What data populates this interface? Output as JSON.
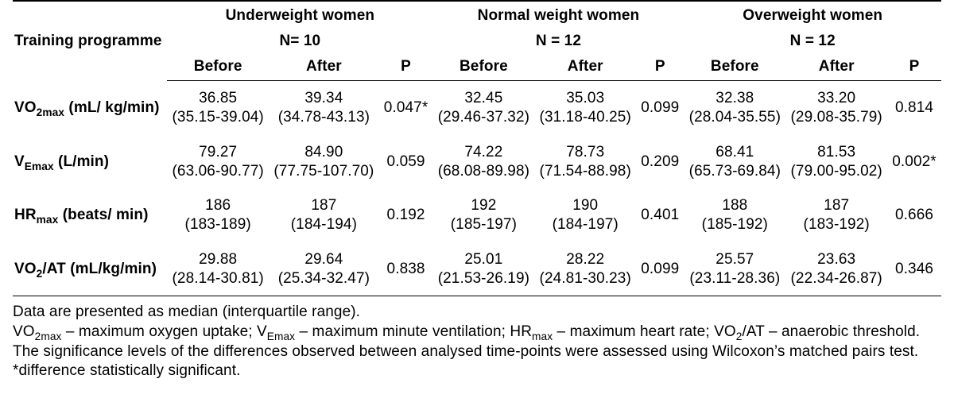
{
  "header": {
    "training_programme": "Training programme",
    "groups": [
      {
        "title": "Underweight women",
        "n": "N= 10"
      },
      {
        "title": "Normal weight women",
        "n": "N = 12"
      },
      {
        "title": "Overweight women",
        "n": "N = 12"
      }
    ],
    "before": "Before",
    "after": "After",
    "p": "P"
  },
  "rows": [
    {
      "label_html": "VO<sub>2max</sub> (mL/ kg/min)",
      "g0_before": "36.85 (35.15-39.04)",
      "g0_after": "39.34 (34.78-43.13)",
      "g0_p": "0.047*",
      "g1_before": "32.45 (29.46-37.32)",
      "g1_after": "35.03 (31.18-40.25)",
      "g1_p": "0.099",
      "g2_before": "32.38 (28.04-35.55)",
      "g2_after": "33.20 (29.08-35.79)",
      "g2_p": "0.814"
    },
    {
      "label_html": "V<sub>Emax</sub> (L/min)",
      "g0_before": "79.27 (63.06-90.77)",
      "g0_after": "84.90 (77.75-107.70)",
      "g0_p": "0.059",
      "g1_before": "74.22 (68.08-89.98)",
      "g1_after": "78.73 (71.54-88.98)",
      "g1_p": "0.209",
      "g2_before": "68.41 (65.73-69.84)",
      "g2_after": "81.53 (79.00-95.02)",
      "g2_p": "0.002*"
    },
    {
      "label_html": "HR<sub>max</sub> (beats/ min)",
      "g0_before": "186 (183-189)",
      "g0_after": "187 (184-194)",
      "g0_p": "0.192",
      "g1_before": "192 (185-197)",
      "g1_after": "190 (184-197)",
      "g1_p": "0.401",
      "g2_before": "188 (185-192)",
      "g2_after": "187 (183-192)",
      "g2_p": "0.666"
    },
    {
      "label_html": "VO<sub>2</sub>/AT (mL/kg/min)",
      "g0_before": "29.88 (28.14-30.81)",
      "g0_after": "29.64 (25.34-32.47)",
      "g0_p": "0.838",
      "g1_before": "25.01 (21.53-26.19)",
      "g1_after": "28.22 (24.81-30.23)",
      "g1_p": "0.099",
      "g2_before": "25.57 (23.11-28.36)",
      "g2_after": "23.63 (22.34-26.87)",
      "g2_p": "0.346"
    }
  ],
  "footnotes": {
    "line1": "Data are presented as median (interquartile range).",
    "line2_html": "VO<sub>2max</sub> – maximum oxygen uptake; V<sub>Emax</sub> – maximum minute ventilation; HR<sub>max</sub> – maximum heart rate; VO<sub>2</sub>/AT – anaerobic threshold.",
    "line3": "The significance levels of the differences observed between analysed time-points were assessed using Wilcoxon’s matched pairs test.",
    "line4": "*difference statistically significant."
  }
}
